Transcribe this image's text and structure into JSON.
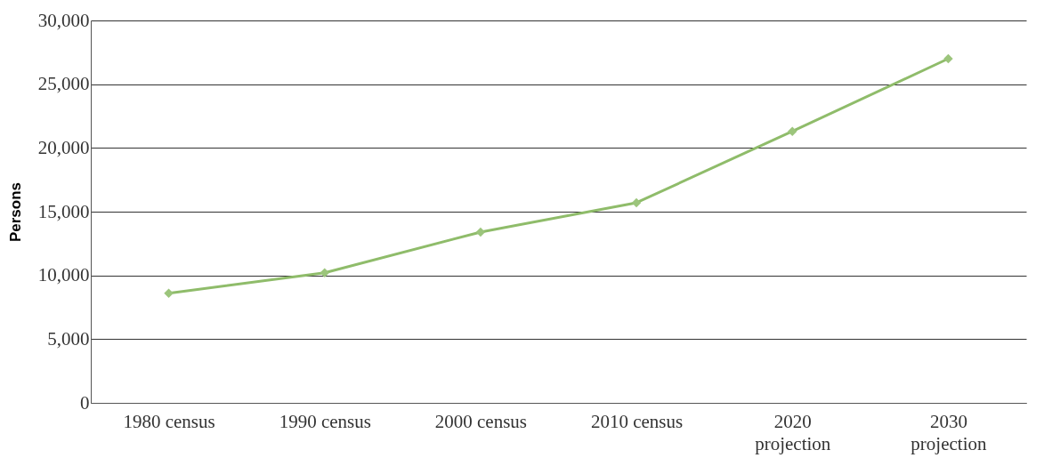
{
  "chart_data": {
    "type": "line",
    "ylabel": "Persons",
    "categories": [
      "1980 census",
      "1990 census",
      "2000 census",
      "2010 census",
      "2020 projection",
      "2030 projection"
    ],
    "series": [
      {
        "color": "#8fbc6a",
        "values": [
          8600,
          10200,
          13400,
          15700,
          21300,
          27000
        ]
      }
    ],
    "ylim": [
      0,
      30000
    ],
    "yticks": [
      0,
      {
        "value": 5000,
        "label": "5,000"
      },
      {
        "value": 10000,
        "label": "10,000"
      },
      {
        "value": 15000,
        "label": "15,000"
      },
      {
        "value": 20000,
        "label": "20,000"
      },
      {
        "value": 25000,
        "label": "25,000"
      },
      {
        "value": 30000,
        "label": "30,000"
      }
    ],
    "grid": "y",
    "marker": "diamond",
    "line_style": "solid"
  }
}
